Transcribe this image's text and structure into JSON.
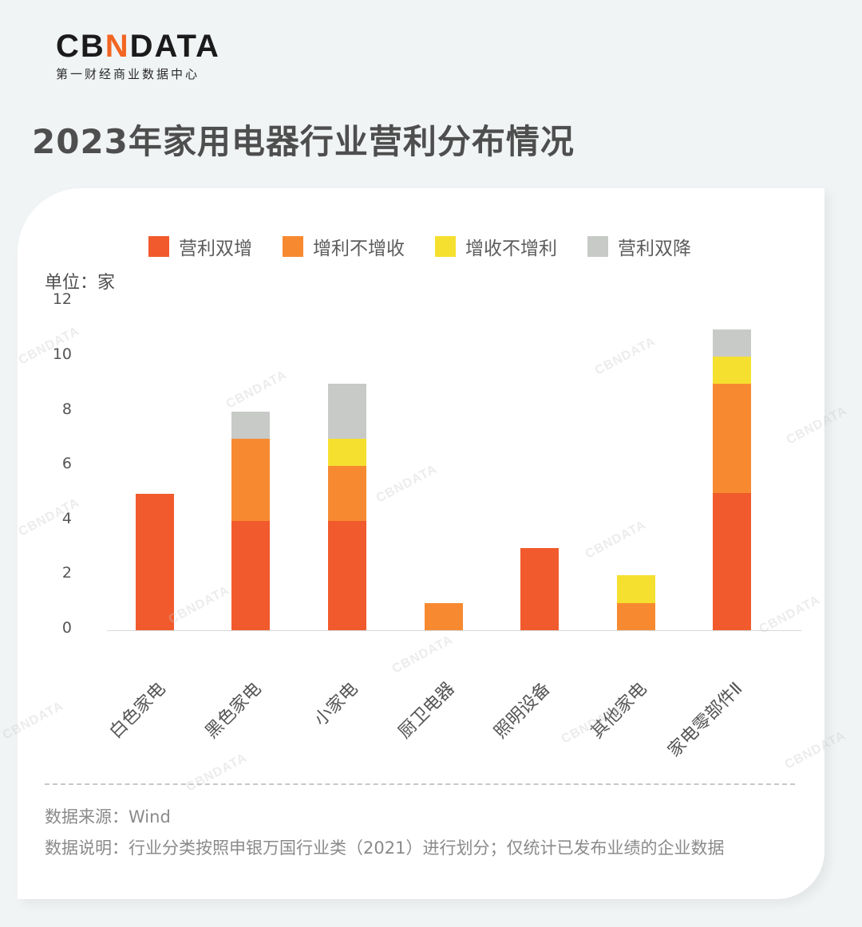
{
  "brand": {
    "logo_pre": "CB",
    "logo_mark": "N",
    "logo_post": "DATA",
    "subtitle": "第一财经商业数据中心"
  },
  "title": "2023年家用电器行业营利分布情况",
  "unit_label": "单位：家",
  "legend": [
    {
      "label": "营利双增",
      "color": "#f15a2d"
    },
    {
      "label": "增利不增收",
      "color": "#f78a31"
    },
    {
      "label": "增收不增利",
      "color": "#f5e02f"
    },
    {
      "label": "营利双降",
      "color": "#c8cac8"
    }
  ],
  "y_ticks": [
    "12",
    "10",
    "8",
    "6",
    "4",
    "2",
    "0"
  ],
  "categories": [
    "白色家电",
    "黑色家电",
    "小家电",
    "厨卫电器",
    "照明设备",
    "其他家电",
    "家电零部件Ⅱ"
  ],
  "footer": {
    "source": "数据来源：Wind",
    "note": "数据说明：行业分类按照申银万国行业类（2021）进行划分；仅统计已发布业绩的企业数据"
  },
  "watermark": "CBNDATA",
  "chart_data": {
    "type": "bar",
    "stacked": true,
    "title": "2023年家用电器行业营利分布情况",
    "xlabel": "",
    "ylabel": "单位：家",
    "ylim": [
      0,
      12
    ],
    "yticks": [
      0,
      2,
      4,
      6,
      8,
      10,
      12
    ],
    "legend_position": "top",
    "grid": false,
    "categories": [
      "白色家电",
      "黑色家电",
      "小家电",
      "厨卫电器",
      "照明设备",
      "其他家电",
      "家电零部件Ⅱ"
    ],
    "series": [
      {
        "name": "营利双增",
        "color": "#f15a2d",
        "values": [
          5,
          4,
          4,
          0,
          3,
          0,
          5
        ]
      },
      {
        "name": "增利不增收",
        "color": "#f78a31",
        "values": [
          0,
          3,
          2,
          1,
          0,
          1,
          4
        ]
      },
      {
        "name": "增收不增利",
        "color": "#f5e02f",
        "values": [
          0,
          0,
          1,
          0,
          0,
          1,
          1
        ]
      },
      {
        "name": "营利双降",
        "color": "#c8cac8",
        "values": [
          0,
          1,
          2,
          0,
          0,
          0,
          1
        ]
      }
    ],
    "totals": [
      5,
      8,
      9,
      1,
      3,
      2,
      11
    ]
  }
}
